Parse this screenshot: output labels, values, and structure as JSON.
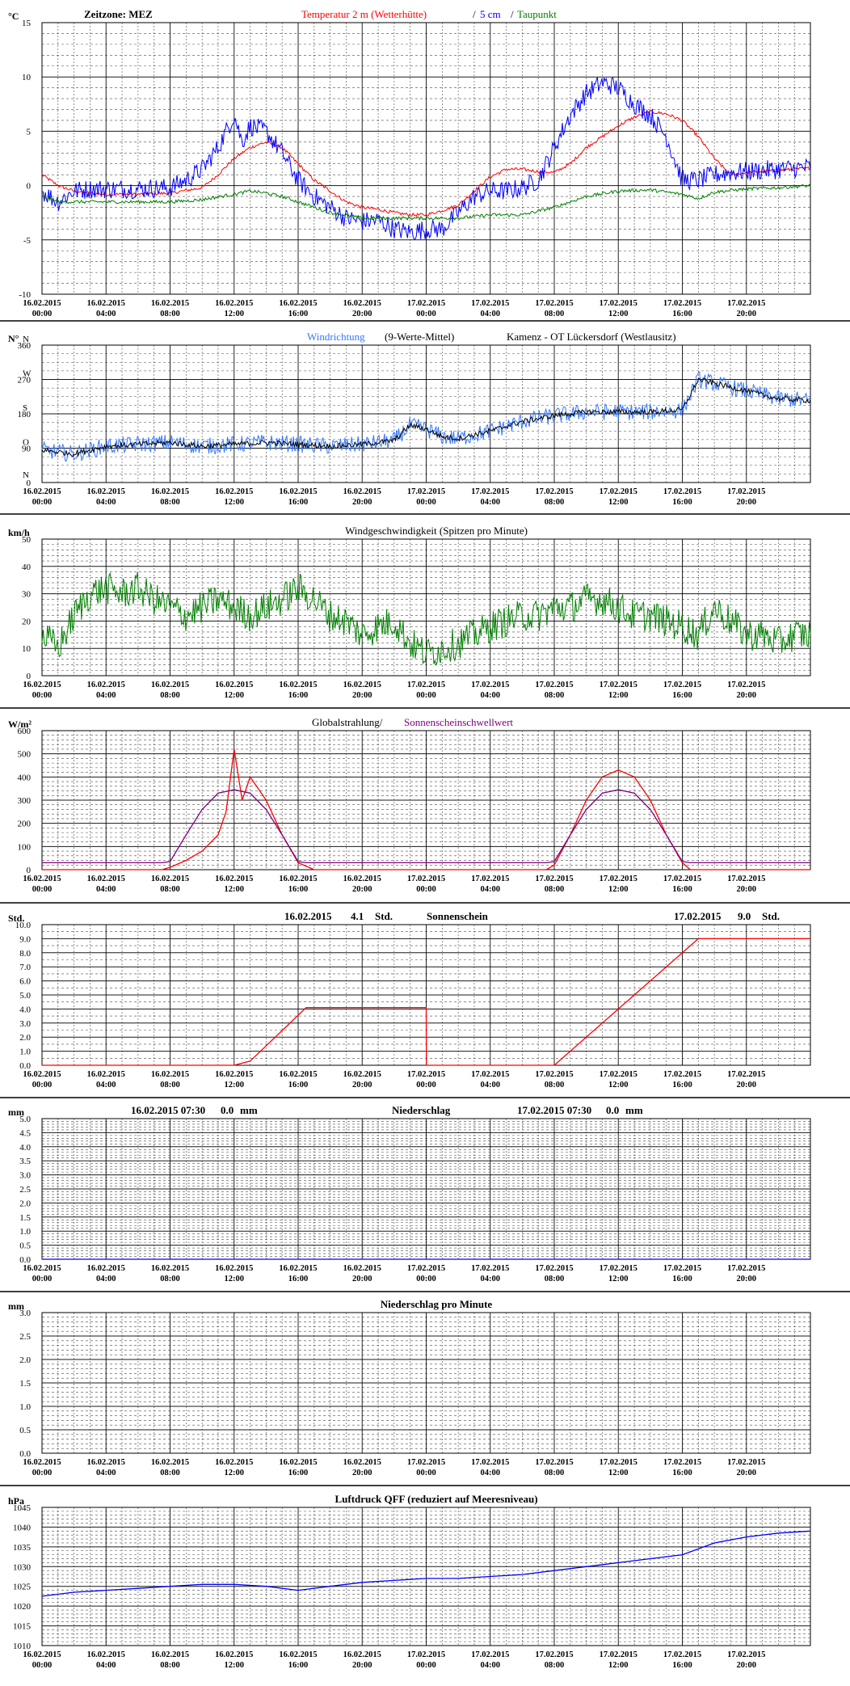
{
  "x_ticks": [
    {
      "date": "16.02.2015",
      "time": "00:00"
    },
    {
      "date": "16.02.2015",
      "time": "04:00"
    },
    {
      "date": "16.02.2015",
      "time": "08:00"
    },
    {
      "date": "16.02.2015",
      "time": "12:00"
    },
    {
      "date": "16.02.2015",
      "time": "16:00"
    },
    {
      "date": "16.02.2015",
      "time": "20:00"
    },
    {
      "date": "17.02.2015",
      "time": "00:00"
    },
    {
      "date": "17.02.2015",
      "time": "04:00"
    },
    {
      "date": "17.02.2015",
      "time": "08:00"
    },
    {
      "date": "17.02.2015",
      "time": "12:00"
    },
    {
      "date": "17.02.2015",
      "time": "16:00"
    },
    {
      "date": "17.02.2015",
      "time": "20:00"
    }
  ],
  "colors": {
    "red": "#ff0000",
    "blue": "#0000ff",
    "green": "#008000",
    "light_blue": "#3377ff",
    "black": "#000000",
    "purple": "#800080",
    "navy": "#000080"
  },
  "panels": [
    {
      "id": "temperature",
      "unit": "°C",
      "titles": [
        {
          "text": "Zeitzone: MEZ",
          "color": "#000000",
          "pos": "left"
        },
        {
          "text": "Temperatur 2 m (Wetterhütte)",
          "color": "#ff0000",
          "pos": "mid1"
        },
        {
          "text": "/",
          "color": "#000000",
          "pos": "mid2"
        },
        {
          "text": "5 cm",
          "color": "#0000ff",
          "pos": "mid3"
        },
        {
          "text": "/",
          "color": "#000000",
          "pos": "mid4"
        },
        {
          "text": "Taupunkt",
          "color": "#008000",
          "pos": "mid5"
        }
      ],
      "y_ticks": [
        "15",
        "10",
        "5",
        "0",
        "-5",
        "-10"
      ]
    },
    {
      "id": "wind_direction",
      "unit": "N°",
      "titles": [
        {
          "text": "Windrichtung",
          "color": "#3377ff",
          "pos": "a"
        },
        {
          "text": "(9-Werte-Mittel)",
          "color": "#000000",
          "pos": "b"
        },
        {
          "text": "Kamenz - OT Lückersdorf (Westlausitz)",
          "color": "#000000",
          "pos": "c"
        }
      ],
      "y_ticks": [
        "360",
        "270",
        "180",
        "90",
        "0"
      ],
      "compass": [
        "N",
        "W",
        "S",
        "O",
        "N"
      ]
    },
    {
      "id": "wind_speed",
      "unit": "km/h",
      "titles": [
        {
          "text": "Windgeschwindigkeit (Spitzen pro Minute)",
          "color": "#000000",
          "pos": "center"
        }
      ],
      "y_ticks": [
        "50",
        "40",
        "30",
        "20",
        "10",
        "0"
      ]
    },
    {
      "id": "radiation",
      "unit": "W/m²",
      "titles": [
        {
          "text": "Globalstrahlung/",
          "color": "#000000",
          "pos": "a"
        },
        {
          "text": "Sonnenscheinschwellwert",
          "color": "#800080",
          "pos": "b"
        }
      ],
      "y_ticks": [
        "600",
        "500",
        "400",
        "300",
        "200",
        "100",
        "0"
      ]
    },
    {
      "id": "sunshine",
      "unit": "Std.",
      "titles": [
        {
          "text": "16.02.2015",
          "color": "#000000",
          "pos": "d1"
        },
        {
          "text": "4.1",
          "color": "#000000",
          "pos": "v1"
        },
        {
          "text": "Std.",
          "color": "#000000",
          "pos": "u1"
        },
        {
          "text": "Sonnenschein",
          "color": "#000000",
          "pos": "center"
        },
        {
          "text": "17.02.2015",
          "color": "#000000",
          "pos": "d2"
        },
        {
          "text": "9.0",
          "color": "#000000",
          "pos": "v2"
        },
        {
          "text": "Std.",
          "color": "#000000",
          "pos": "u2"
        }
      ],
      "y_ticks": [
        "10.0",
        "9.0",
        "8.0",
        "7.0",
        "6.0",
        "5.0",
        "4.0",
        "3.0",
        "2.0",
        "1.0",
        "0.0"
      ]
    },
    {
      "id": "precipitation",
      "unit": "mm",
      "titles": [
        {
          "text": "16.02.2015 07:30",
          "color": "#000000",
          "pos": "d1"
        },
        {
          "text": "0.0",
          "color": "#000000",
          "pos": "v1"
        },
        {
          "text": "mm",
          "color": "#000000",
          "pos": "u1"
        },
        {
          "text": "Niederschlag",
          "color": "#000000",
          "pos": "center"
        },
        {
          "text": "17.02.2015 07:30",
          "color": "#000000",
          "pos": "d2"
        },
        {
          "text": "0.0",
          "color": "#000000",
          "pos": "v2"
        },
        {
          "text": "mm",
          "color": "#000000",
          "pos": "u2"
        }
      ],
      "y_ticks": [
        "5.0",
        "4.5",
        "4.0",
        "3.5",
        "3.0",
        "2.5",
        "2.0",
        "1.5",
        "1.0",
        "0.5",
        "0.0"
      ]
    },
    {
      "id": "precip_minute",
      "unit": "mm",
      "titles": [
        {
          "text": "Niederschlag pro Minute",
          "color": "#000000",
          "pos": "center"
        }
      ],
      "y_ticks": [
        "3.0",
        "2.5",
        "2.0",
        "1.5",
        "1.0",
        "0.5",
        "0.0"
      ]
    },
    {
      "id": "pressure",
      "unit": "hPa",
      "titles": [
        {
          "text": "Luftdruck QFF (reduziert auf Meeresniveau)",
          "color": "#000000",
          "pos": "center"
        }
      ],
      "y_ticks": [
        "1045",
        "1040",
        "1035",
        "1030",
        "1025",
        "1020",
        "1015",
        "1010"
      ]
    }
  ],
  "chart_data": [
    {
      "type": "line",
      "title": "Temperatur 2 m (Wetterhütte) / 5 cm / Taupunkt",
      "ylabel": "°C",
      "ylim": [
        -10,
        15
      ],
      "x_unit": "hours since 16.02.2015 00:00",
      "series": [
        {
          "name": "Temperatur 2 m (Wetterhütte)",
          "color": "#ff0000",
          "x": [
            0,
            1,
            2,
            3,
            4,
            6,
            8,
            10,
            11,
            12,
            13,
            14,
            15,
            16,
            17,
            18,
            19,
            20,
            21,
            22,
            23,
            24,
            25,
            26,
            27,
            28,
            29,
            30,
            31,
            32,
            33,
            34,
            35,
            36,
            37,
            38,
            39,
            40,
            41,
            42,
            43,
            44,
            45,
            46,
            47,
            48
          ],
          "y": [
            1,
            0,
            -0.5,
            -0.7,
            -0.8,
            -0.8,
            -0.7,
            -0.2,
            1.0,
            2.5,
            3.5,
            4.0,
            3.5,
            2.0,
            0.5,
            -0.5,
            -1.5,
            -2.0,
            -2.2,
            -2.5,
            -2.7,
            -2.7,
            -2.3,
            -1.8,
            -0.5,
            0.8,
            1.5,
            1.5,
            1.3,
            1.2,
            2.0,
            3.5,
            4.5,
            5.5,
            6.3,
            6.8,
            6.6,
            6.0,
            4.5,
            2.5,
            1.0,
            1.2,
            1.3,
            1.4,
            1.5,
            1.6
          ]
        },
        {
          "name": "5 cm",
          "color": "#0000ff",
          "x": [
            0,
            1,
            2,
            3,
            4,
            6,
            8,
            9,
            10,
            11,
            12,
            12.5,
            13,
            14,
            15,
            16,
            17,
            18,
            19,
            20,
            21,
            22,
            23,
            24,
            25,
            26,
            27,
            28,
            29,
            30,
            31,
            32,
            33,
            34,
            35,
            36,
            37,
            38,
            39,
            40,
            41,
            42,
            43,
            44,
            45,
            46,
            47,
            48
          ],
          "y": [
            -0.5,
            -1.5,
            -0.5,
            -0.3,
            -0.3,
            -0.3,
            -0.2,
            0.5,
            1.5,
            3.5,
            6.5,
            4.0,
            5.5,
            5.0,
            3.0,
            0.5,
            -1.0,
            -2.0,
            -3.0,
            -3.3,
            -3.2,
            -4.0,
            -4.3,
            -4.0,
            -4.0,
            -2.5,
            -1.0,
            -0.5,
            -0.5,
            -0.2,
            0.5,
            3.5,
            6.5,
            8.5,
            9.5,
            9.0,
            7.5,
            6.5,
            4.5,
            0.5,
            0.5,
            1.0,
            1.2,
            1.3,
            1.4,
            1.5,
            1.6,
            1.7
          ]
        },
        {
          "name": "Taupunkt",
          "color": "#008000",
          "x": [
            0,
            1,
            2,
            4,
            6,
            8,
            10,
            12,
            13,
            14,
            15,
            16,
            18,
            20,
            22,
            24,
            26,
            28,
            30,
            32,
            34,
            36,
            38,
            40,
            41,
            42,
            44,
            46,
            48
          ],
          "y": [
            -1.0,
            -1.5,
            -1.5,
            -1.5,
            -1.5,
            -1.5,
            -1.3,
            -0.8,
            -0.5,
            -0.7,
            -1.0,
            -1.5,
            -2.5,
            -3.0,
            -3.0,
            -3.0,
            -3.0,
            -2.7,
            -2.7,
            -2.0,
            -1.0,
            -0.5,
            -0.4,
            -0.8,
            -1.2,
            -0.6,
            -0.3,
            -0.2,
            0.0
          ]
        }
      ]
    },
    {
      "type": "line",
      "title": "Windrichtung (9-Werte-Mittel)",
      "ylabel": "N°",
      "ylim": [
        0,
        360
      ],
      "series": [
        {
          "name": "Windrichtung",
          "color": "#3377ff",
          "x": [
            0,
            2,
            4,
            6,
            8,
            10,
            12,
            14,
            16,
            18,
            20,
            22,
            23,
            24,
            25,
            26,
            28,
            30,
            32,
            34,
            36,
            38,
            40,
            41,
            42,
            44,
            46,
            48
          ],
          "y": [
            85,
            75,
            95,
            100,
            105,
            95,
            100,
            105,
            100,
            95,
            100,
            110,
            150,
            140,
            120,
            115,
            135,
            160,
            175,
            185,
            185,
            185,
            190,
            270,
            260,
            240,
            220,
            215
          ]
        },
        {
          "name": "9-Werte-Mittel",
          "color": "#000000",
          "x": [
            0,
            2,
            4,
            6,
            8,
            10,
            12,
            14,
            16,
            18,
            20,
            22,
            23,
            24,
            25,
            26,
            28,
            30,
            32,
            34,
            36,
            38,
            40,
            41,
            42,
            44,
            46,
            48
          ],
          "y": [
            85,
            75,
            95,
            100,
            105,
            95,
            100,
            105,
            100,
            95,
            100,
            110,
            150,
            140,
            120,
            115,
            135,
            160,
            175,
            185,
            185,
            185,
            190,
            270,
            260,
            240,
            220,
            215
          ]
        }
      ]
    },
    {
      "type": "line",
      "title": "Windgeschwindigkeit (Spitzen pro Minute)",
      "ylabel": "km/h",
      "ylim": [
        0,
        50
      ],
      "series": [
        {
          "name": "Windgeschwindigkeit",
          "color": "#008000",
          "x": [
            0,
            1,
            2,
            3,
            4,
            5,
            6,
            7,
            8,
            9,
            10,
            11,
            12,
            13,
            14,
            15,
            16,
            17,
            18,
            19,
            20,
            21,
            22,
            23,
            24,
            25,
            26,
            27,
            28,
            29,
            30,
            31,
            32,
            33,
            34,
            35,
            36,
            37,
            38,
            39,
            40,
            41,
            42,
            43,
            44,
            45,
            46,
            47,
            48
          ],
          "y": [
            15,
            10,
            22,
            30,
            32,
            30,
            32,
            28,
            25,
            22,
            25,
            28,
            25,
            22,
            25,
            28,
            32,
            28,
            22,
            20,
            15,
            18,
            20,
            12,
            8,
            10,
            12,
            15,
            18,
            20,
            22,
            22,
            25,
            25,
            28,
            28,
            25,
            22,
            22,
            20,
            18,
            15,
            25,
            20,
            15,
            15,
            12,
            15,
            15
          ]
        }
      ]
    },
    {
      "type": "line",
      "title": "Globalstrahlung/ Sonnenscheinschwellwert",
      "ylabel": "W/m²",
      "ylim": [
        0,
        600
      ],
      "series": [
        {
          "name": "Globalstrahlung",
          "color": "#ff0000",
          "x": [
            0,
            7.5,
            8,
            9,
            10,
            11,
            11.5,
            12,
            12.5,
            13,
            14,
            15,
            16,
            17,
            24,
            31.5,
            32,
            33,
            34,
            35,
            36,
            37,
            38,
            39,
            40,
            40.5,
            48
          ],
          "y": [
            0,
            0,
            10,
            40,
            80,
            150,
            250,
            520,
            300,
            400,
            300,
            150,
            30,
            0,
            0,
            0,
            20,
            150,
            300,
            400,
            430,
            400,
            300,
            150,
            30,
            0,
            0
          ]
        },
        {
          "name": "Sonnenscheinschwellwert",
          "color": "#800080",
          "x": [
            0,
            7.5,
            8,
            9,
            10,
            11,
            12,
            13,
            14,
            15,
            16,
            16.5,
            17,
            24,
            31.5,
            32,
            33,
            34,
            35,
            36,
            37,
            38,
            39,
            40,
            40.5,
            41,
            48
          ],
          "y": [
            30,
            30,
            35,
            150,
            260,
            330,
            345,
            330,
            260,
            150,
            35,
            30,
            30,
            30,
            30,
            35,
            150,
            260,
            330,
            345,
            330,
            260,
            150,
            35,
            30,
            30,
            30
          ]
        }
      ]
    },
    {
      "type": "line",
      "title": "Sonnenschein",
      "ylabel": "Std.",
      "ylim": [
        0,
        10
      ],
      "series": [
        {
          "name": "Sonnenschein",
          "color": "#ff0000",
          "x": [
            0,
            12,
            13,
            16.5,
            24,
            24.01,
            32,
            41,
            48
          ],
          "y": [
            0,
            0,
            0.3,
            4.1,
            4.1,
            0,
            0,
            9.0,
            9.0
          ]
        }
      ]
    },
    {
      "type": "line",
      "title": "Niederschlag",
      "ylabel": "mm",
      "ylim": [
        0,
        5
      ],
      "series": [
        {
          "name": "Niederschlag",
          "color": "#0000ff",
          "x": [
            0,
            48
          ],
          "y": [
            0,
            0
          ]
        }
      ]
    },
    {
      "type": "line",
      "title": "Niederschlag pro Minute",
      "ylabel": "mm",
      "ylim": [
        0,
        3
      ],
      "series": []
    },
    {
      "type": "line",
      "title": "Luftdruck QFF (reduziert auf Meeresniveau)",
      "ylabel": "hPa",
      "ylim": [
        1010,
        1045
      ],
      "series": [
        {
          "name": "Luftdruck QFF",
          "color": "#0000ff",
          "x": [
            0,
            2,
            4,
            6,
            8,
            10,
            12,
            14,
            16,
            18,
            20,
            22,
            24,
            26,
            28,
            30,
            32,
            34,
            36,
            38,
            40,
            42,
            44,
            46,
            48
          ],
          "y": [
            1022.5,
            1023.5,
            1024,
            1024.5,
            1025,
            1025.5,
            1025.5,
            1025,
            1024,
            1025,
            1026,
            1026.5,
            1027,
            1027,
            1027.5,
            1028,
            1029,
            1030,
            1031,
            1032,
            1033,
            1036,
            1037.5,
            1038.5,
            1039
          ]
        }
      ]
    }
  ]
}
